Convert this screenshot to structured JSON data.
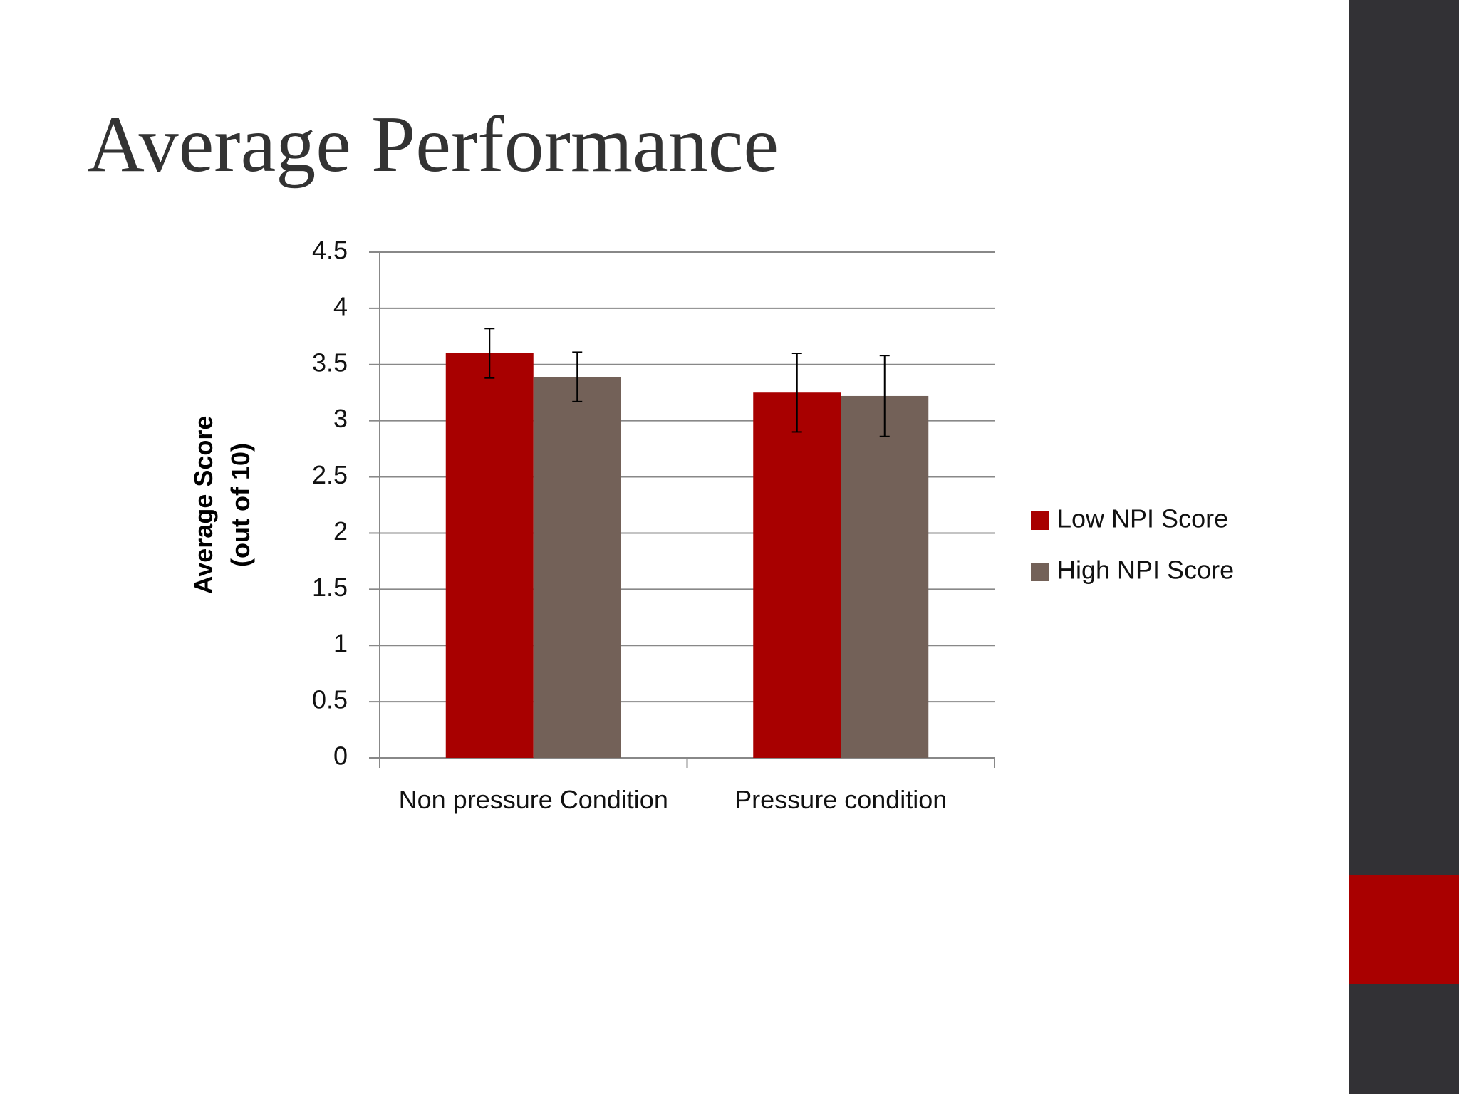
{
  "chart_data": {
    "type": "bar",
    "title": "Average Performance",
    "ylabel": "Average Score (out of 10)",
    "categories": [
      "Non pressure Condition",
      "Pressure condition"
    ],
    "series": [
      {
        "name": "Low NPI Score",
        "color": "#a80000",
        "values": [
          3.6,
          3.25
        ],
        "errors": [
          0.22,
          0.35
        ]
      },
      {
        "name": "High NPI Score",
        "color": "#736158",
        "values": [
          3.39,
          3.22
        ],
        "errors": [
          0.22,
          0.36
        ]
      }
    ],
    "ylim": [
      0,
      4.5
    ],
    "yticks": [
      0,
      0.5,
      1,
      1.5,
      2,
      2.5,
      3,
      3.5,
      4,
      4.5
    ],
    "grid": true,
    "legend": "right"
  }
}
